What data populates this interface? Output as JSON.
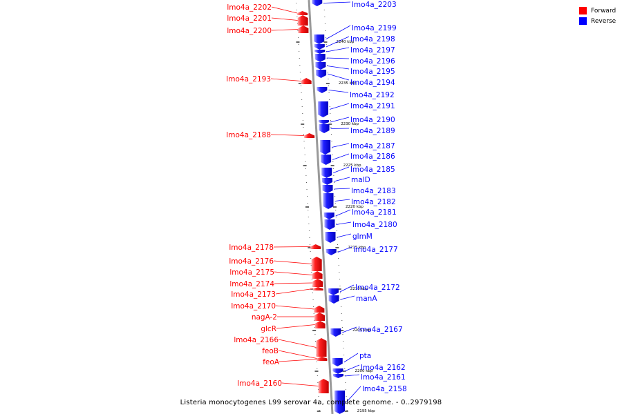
{
  "title": "Listeria monocytogenes L99 serovar 4a, complete genome. - 0..2979198",
  "legend": [
    {
      "label": "Forward",
      "color": "#ff0000"
    },
    {
      "label": "Reverse",
      "color": "#0000ff"
    }
  ],
  "colors": {
    "forward": "#ff0000",
    "reverse": "#0000ff",
    "axis": "#999999",
    "leader_forward": "#ff0000",
    "leader_reverse": "#0000ff"
  },
  "ticks": [
    {
      "label": "2240 kbp"
    },
    {
      "label": "2235 kbp"
    },
    {
      "label": "2230 kbp"
    },
    {
      "label": "2225 kbp"
    },
    {
      "label": "2220 kbp"
    },
    {
      "label": "2215 kbp"
    },
    {
      "label": "2210 kbp"
    },
    {
      "label": "2205 kbp"
    },
    {
      "label": "2200 kbp"
    },
    {
      "label": "2195 kbp"
    }
  ],
  "genes": [
    {
      "name": "lmo4a_2203",
      "strand": "reverse"
    },
    {
      "name": "lmo4a_2202",
      "strand": "forward"
    },
    {
      "name": "lmo4a_2201",
      "strand": "forward"
    },
    {
      "name": "lmo4a_2200",
      "strand": "forward"
    },
    {
      "name": "lmo4a_2199",
      "strand": "reverse"
    },
    {
      "name": "lmo4a_2198",
      "strand": "reverse"
    },
    {
      "name": "lmo4a_2197",
      "strand": "reverse"
    },
    {
      "name": "lmo4a_2196",
      "strand": "reverse"
    },
    {
      "name": "lmo4a_2195",
      "strand": "reverse"
    },
    {
      "name": "lmo4a_2194",
      "strand": "reverse"
    },
    {
      "name": "lmo4a_2193",
      "strand": "forward"
    },
    {
      "name": "lmo4a_2192",
      "strand": "reverse"
    },
    {
      "name": "lmo4a_2191",
      "strand": "reverse"
    },
    {
      "name": "lmo4a_2190",
      "strand": "reverse"
    },
    {
      "name": "lmo4a_2189",
      "strand": "reverse"
    },
    {
      "name": "lmo4a_2188",
      "strand": "forward"
    },
    {
      "name": "lmo4a_2187",
      "strand": "reverse"
    },
    {
      "name": "lmo4a_2186",
      "strand": "reverse"
    },
    {
      "name": "lmo4a_2185",
      "strand": "reverse"
    },
    {
      "name": "malD",
      "strand": "reverse"
    },
    {
      "name": "lmo4a_2183",
      "strand": "reverse"
    },
    {
      "name": "lmo4a_2182",
      "strand": "reverse"
    },
    {
      "name": "lmo4a_2181",
      "strand": "reverse"
    },
    {
      "name": "lmo4a_2180",
      "strand": "reverse"
    },
    {
      "name": "glmM",
      "strand": "reverse"
    },
    {
      "name": "lmo4a_2178",
      "strand": "forward"
    },
    {
      "name": "lmo4a_2177",
      "strand": "reverse"
    },
    {
      "name": "lmo4a_2176",
      "strand": "forward"
    },
    {
      "name": "lmo4a_2175",
      "strand": "forward"
    },
    {
      "name": "lmo4a_2174",
      "strand": "forward"
    },
    {
      "name": "lmo4a_2173",
      "strand": "forward"
    },
    {
      "name": "lmo4a_2172",
      "strand": "reverse"
    },
    {
      "name": "manA",
      "strand": "reverse"
    },
    {
      "name": "lmo4a_2170",
      "strand": "forward"
    },
    {
      "name": "nagA-2",
      "strand": "forward"
    },
    {
      "name": "glcR",
      "strand": "forward"
    },
    {
      "name": "lmo4a_2167",
      "strand": "reverse"
    },
    {
      "name": "lmo4a_2166",
      "strand": "forward"
    },
    {
      "name": "feoB",
      "strand": "forward"
    },
    {
      "name": "feoA",
      "strand": "forward"
    },
    {
      "name": "pta",
      "strand": "reverse"
    },
    {
      "name": "lmo4a_2162",
      "strand": "reverse"
    },
    {
      "name": "lmo4a_2161",
      "strand": "reverse"
    },
    {
      "name": "lmo4a_2160",
      "strand": "forward"
    },
    {
      "name": "lmo4a_2158",
      "strand": "reverse"
    }
  ]
}
